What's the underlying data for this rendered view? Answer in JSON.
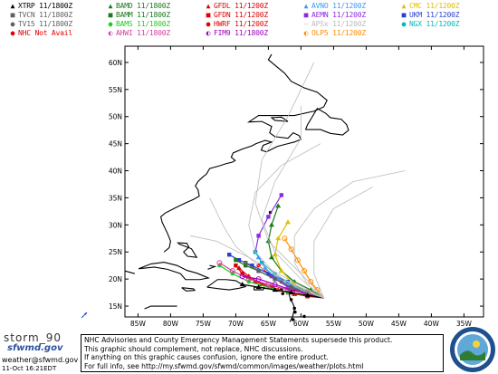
{
  "legend": [
    {
      "name": "XTRP",
      "time": "11/1800Z",
      "color": "#000000",
      "symbol": "▲"
    },
    {
      "name": "BAMD",
      "time": "11/1800Z",
      "color": "#1a7a1a",
      "symbol": "▲"
    },
    {
      "name": "GFDL",
      "time": "11/1200Z",
      "color": "#e00000",
      "symbol": "▲"
    },
    {
      "name": "AVNO",
      "time": "11/1200Z",
      "color": "#3a9cf0",
      "symbol": "▲"
    },
    {
      "name": "CMC",
      "time": "11/1200Z",
      "color": "#e0c000",
      "symbol": "▲"
    },
    {
      "name": "TVCN",
      "time": "11/1800Z",
      "color": "#606060",
      "symbol": "■"
    },
    {
      "name": "BAMM",
      "time": "11/1800Z",
      "color": "#1a7a1a",
      "symbol": "■"
    },
    {
      "name": "GFDN",
      "time": "11/1200Z",
      "color": "#e00000",
      "symbol": "■"
    },
    {
      "name": "AEMN",
      "time": "11/1200Z",
      "color": "#8a2be2",
      "symbol": "■"
    },
    {
      "name": "UKM",
      "time": "11/1200Z",
      "color": "#2a3fd0",
      "symbol": "■"
    },
    {
      "name": "TV15",
      "time": "11/1800Z",
      "color": "#606060",
      "symbol": "●"
    },
    {
      "name": "BAMS",
      "time": "11/1800Z",
      "color": "#22cc22",
      "symbol": "●"
    },
    {
      "name": "HWRF",
      "time": "11/1200Z",
      "color": "#e00000",
      "symbol": "●"
    },
    {
      "name": "APSx",
      "time": "11/1200Z",
      "color": "#bbbbbb",
      "symbol": "—"
    },
    {
      "name": "NGX",
      "time": "11/1200Z",
      "color": "#00b8b8",
      "symbol": "●"
    },
    {
      "name": "NHC",
      "time": "Not Avail",
      "color": "#e00000",
      "symbol": "●"
    },
    {
      "name": "AHWI",
      "time": "11/1800Z",
      "color": "#d0409a",
      "symbol": "◐"
    },
    {
      "name": "FIM9",
      "time": "11/1800Z",
      "color": "#a000c0",
      "symbol": "◐"
    },
    {
      "name": "OLP5",
      "time": "11/1200Z",
      "color": "#ff8c00",
      "symbol": "◐"
    }
  ],
  "map": {
    "lat_labels": [
      "60N",
      "55N",
      "50N",
      "45N",
      "40N",
      "35N",
      "30N",
      "25N",
      "20N",
      "15N"
    ],
    "lon_labels": [
      "85W",
      "80W",
      "75W",
      "70W",
      "65W",
      "60W",
      "55W",
      "50W",
      "45W",
      "40W",
      "35W"
    ],
    "lon_range": [
      -87,
      -32
    ],
    "lat_range": [
      13,
      63
    ]
  },
  "tracks": [
    {
      "model": "GFDL",
      "color": "#e00000",
      "points": [
        [
          -56.5,
          16.5
        ],
        [
          -58.5,
          17.0
        ],
        [
          -61,
          17.2
        ],
        [
          -63.5,
          18.0
        ],
        [
          -66,
          19.0
        ],
        [
          -68,
          20.5
        ],
        [
          -69.5,
          22.0
        ]
      ]
    },
    {
      "model": "GFDN",
      "color": "#e00000",
      "points": [
        [
          -56.5,
          16.5
        ],
        [
          -59,
          16.8
        ],
        [
          -62,
          17.5
        ],
        [
          -64.5,
          18.5
        ],
        [
          -67,
          19.5
        ],
        [
          -69,
          21.0
        ],
        [
          -70,
          22.5
        ]
      ]
    },
    {
      "model": "HWRF",
      "color": "#e00000",
      "points": [
        [
          -56.5,
          16.5
        ],
        [
          -58.5,
          17.2
        ],
        [
          -61,
          18.0
        ],
        [
          -63,
          19.5
        ],
        [
          -65,
          21.0
        ],
        [
          -66.5,
          22.5
        ]
      ]
    },
    {
      "model": "AEMN",
      "color": "#8a2be2",
      "points": [
        [
          -56.5,
          16.5
        ],
        [
          -59,
          17.5
        ],
        [
          -62,
          18.5
        ],
        [
          -64.5,
          20.5
        ],
        [
          -66,
          23.0
        ],
        [
          -67,
          25.0
        ],
        [
          -66.5,
          28.0
        ],
        [
          -65,
          31.5
        ],
        [
          -63,
          35.5
        ]
      ]
    },
    {
      "model": "UKM",
      "color": "#2a3fd0",
      "points": [
        [
          -56.5,
          16.5
        ],
        [
          -59,
          17.5
        ],
        [
          -62,
          19.5
        ],
        [
          -65,
          21.0
        ],
        [
          -67.5,
          22.5
        ],
        [
          -69.5,
          23.5
        ],
        [
          -71,
          24.5
        ]
      ]
    },
    {
      "model": "BAMD",
      "color": "#1a7a1a",
      "points": [
        [
          -56.5,
          16.5
        ],
        [
          -58.5,
          18.0
        ],
        [
          -61,
          19.5
        ],
        [
          -63,
          21.5
        ],
        [
          -64.5,
          24.0
        ],
        [
          -65,
          27.0
        ],
        [
          -64.5,
          30.0
        ],
        [
          -63.5,
          33.5
        ]
      ]
    },
    {
      "model": "BAMM",
      "color": "#1a7a1a",
      "points": [
        [
          -56.5,
          16.5
        ],
        [
          -59,
          17.5
        ],
        [
          -61.5,
          18.5
        ],
        [
          -64,
          20.0
        ],
        [
          -66.5,
          21.5
        ],
        [
          -68.5,
          22.5
        ],
        [
          -70,
          23.5
        ]
      ]
    },
    {
      "model": "BAMS",
      "color": "#22cc22",
      "points": [
        [
          -56.5,
          16.5
        ],
        [
          -59,
          17.0
        ],
        [
          -62,
          17.5
        ],
        [
          -65,
          18.5
        ],
        [
          -68,
          19.5
        ],
        [
          -70.5,
          21.0
        ],
        [
          -72.5,
          22.5
        ]
      ]
    },
    {
      "model": "NGX",
      "color": "#00b8b8",
      "points": [
        [
          -56.5,
          16.5
        ],
        [
          -59,
          17.8
        ],
        [
          -61.5,
          19.0
        ],
        [
          -64,
          21.0
        ],
        [
          -66,
          23.0
        ],
        [
          -67,
          25.0
        ]
      ]
    },
    {
      "model": "AVNO",
      "color": "#3a9cf0",
      "points": [
        [
          -56.5,
          16.5
        ],
        [
          -58.5,
          17.5
        ],
        [
          -61,
          18.5
        ],
        [
          -63.5,
          20.0
        ],
        [
          -65.5,
          22.0
        ],
        [
          -66.5,
          24.0
        ]
      ]
    },
    {
      "model": "CMC",
      "color": "#e0c000",
      "points": [
        [
          -56.5,
          16.5
        ],
        [
          -58.5,
          17.5
        ],
        [
          -61,
          19.0
        ],
        [
          -63,
          21.5
        ],
        [
          -64,
          24.5
        ],
        [
          -63.5,
          27.5
        ],
        [
          -62,
          30.5
        ]
      ]
    },
    {
      "model": "OLP5",
      "color": "#ff8c00",
      "points": [
        [
          -56.5,
          16.5
        ],
        [
          -57.5,
          18.0
        ],
        [
          -58.5,
          19.5
        ],
        [
          -59.5,
          21.5
        ],
        [
          -60.5,
          23.5
        ],
        [
          -61.5,
          25.5
        ],
        [
          -62.5,
          27.5
        ]
      ]
    },
    {
      "model": "AHWI",
      "color": "#d0409a",
      "points": [
        [
          -56.5,
          16.5
        ],
        [
          -59,
          17.5
        ],
        [
          -62,
          18.0
        ],
        [
          -65,
          19.0
        ],
        [
          -68,
          20.0
        ],
        [
          -70.5,
          21.5
        ],
        [
          -72.5,
          23.0
        ]
      ]
    },
    {
      "model": "FIM9",
      "color": "#a000c0",
      "points": [
        [
          -56.5,
          16.5
        ],
        [
          -59,
          17.2
        ],
        [
          -61.5,
          18.0
        ],
        [
          -64,
          19.0
        ],
        [
          -66.5,
          20.0
        ],
        [
          -69,
          20.5
        ]
      ]
    },
    {
      "model": "TVCN",
      "color": "#606060",
      "points": [
        [
          -56.5,
          16.5
        ],
        [
          -59,
          17.5
        ],
        [
          -61.5,
          18.5
        ],
        [
          -64,
          20.0
        ],
        [
          -66.5,
          21.5
        ],
        [
          -68.5,
          23.0
        ]
      ]
    },
    {
      "model": "TV15",
      "color": "#606060",
      "points": [
        [
          -56.5,
          16.5
        ],
        [
          -59,
          17.5
        ],
        [
          -61.5,
          18.5
        ],
        [
          -64,
          20.0
        ],
        [
          -66.5,
          21.5
        ],
        [
          -68.5,
          23.0
        ]
      ]
    },
    {
      "model": "XTRP",
      "color": "#000000",
      "points": [
        [
          -56.5,
          16.5
        ],
        [
          -59,
          17.0
        ],
        [
          -61.5,
          17.5
        ],
        [
          -64,
          18.0
        ],
        [
          -66.5,
          18.5
        ],
        [
          -69,
          19.0
        ]
      ]
    },
    {
      "model": "APSx",
      "color": "#bbbbbb",
      "points": [
        [
          -56.5,
          16.5
        ],
        [
          -60,
          18
        ],
        [
          -64,
          21
        ],
        [
          -67,
          25
        ],
        [
          -68,
          30
        ],
        [
          -67,
          36
        ],
        [
          -63,
          41
        ],
        [
          -57,
          45
        ]
      ]
    },
    {
      "model": "APSx",
      "color": "#bbbbbb",
      "points": [
        [
          -56.5,
          16.5
        ],
        [
          -61,
          19
        ],
        [
          -66,
          22
        ],
        [
          -70,
          26
        ],
        [
          -72,
          30
        ],
        [
          -74,
          35
        ]
      ]
    },
    {
      "model": "APSx",
      "color": "#bbbbbb",
      "points": [
        [
          -56.5,
          16.5
        ],
        [
          -59,
          19
        ],
        [
          -61,
          23
        ],
        [
          -61,
          28
        ],
        [
          -58,
          33
        ],
        [
          -52,
          38
        ],
        [
          -44,
          40
        ]
      ]
    },
    {
      "model": "APSx",
      "color": "#bbbbbb",
      "points": [
        [
          -56.5,
          16.5
        ],
        [
          -60,
          20
        ],
        [
          -64,
          25
        ],
        [
          -66,
          31
        ],
        [
          -64,
          38
        ],
        [
          -60,
          46
        ],
        [
          -60,
          52
        ]
      ]
    },
    {
      "model": "APSx",
      "color": "#bbbbbb",
      "points": [
        [
          -56.5,
          16.5
        ],
        [
          -62,
          20
        ],
        [
          -68,
          24
        ],
        [
          -73,
          27
        ],
        [
          -77,
          28
        ]
      ]
    },
    {
      "model": "APSx",
      "color": "#bbbbbb",
      "points": [
        [
          -56.5,
          16.5
        ],
        [
          -58,
          21
        ],
        [
          -58,
          27
        ],
        [
          -55,
          33
        ],
        [
          -49,
          37
        ]
      ]
    },
    {
      "model": "APSx",
      "color": "#bbbbbb",
      "points": [
        [
          -56.5,
          16.5
        ],
        [
          -60,
          21
        ],
        [
          -65,
          27
        ],
        [
          -67,
          34
        ],
        [
          -66,
          42
        ],
        [
          -62,
          50
        ],
        [
          -58,
          60
        ]
      ]
    }
  ],
  "notice": {
    "line1": "NHC Advisories and County Emergency Management Statements supersede this product.",
    "line2": "This graphic should complement, not replace, NHC discussions.",
    "line3": "If anything on this graphic causes confusion, ignore the entire product.",
    "line4": "For full info, see  http://my.sfwmd.gov/sfwmd/common/images/weather/plots.html"
  },
  "branding": {
    "logo_top": "storm_90",
    "logo_bottom": "sfwmd.gov",
    "email": "weather@sfwmd.gov",
    "timestamp": "11-Oct 16:21EDT"
  }
}
